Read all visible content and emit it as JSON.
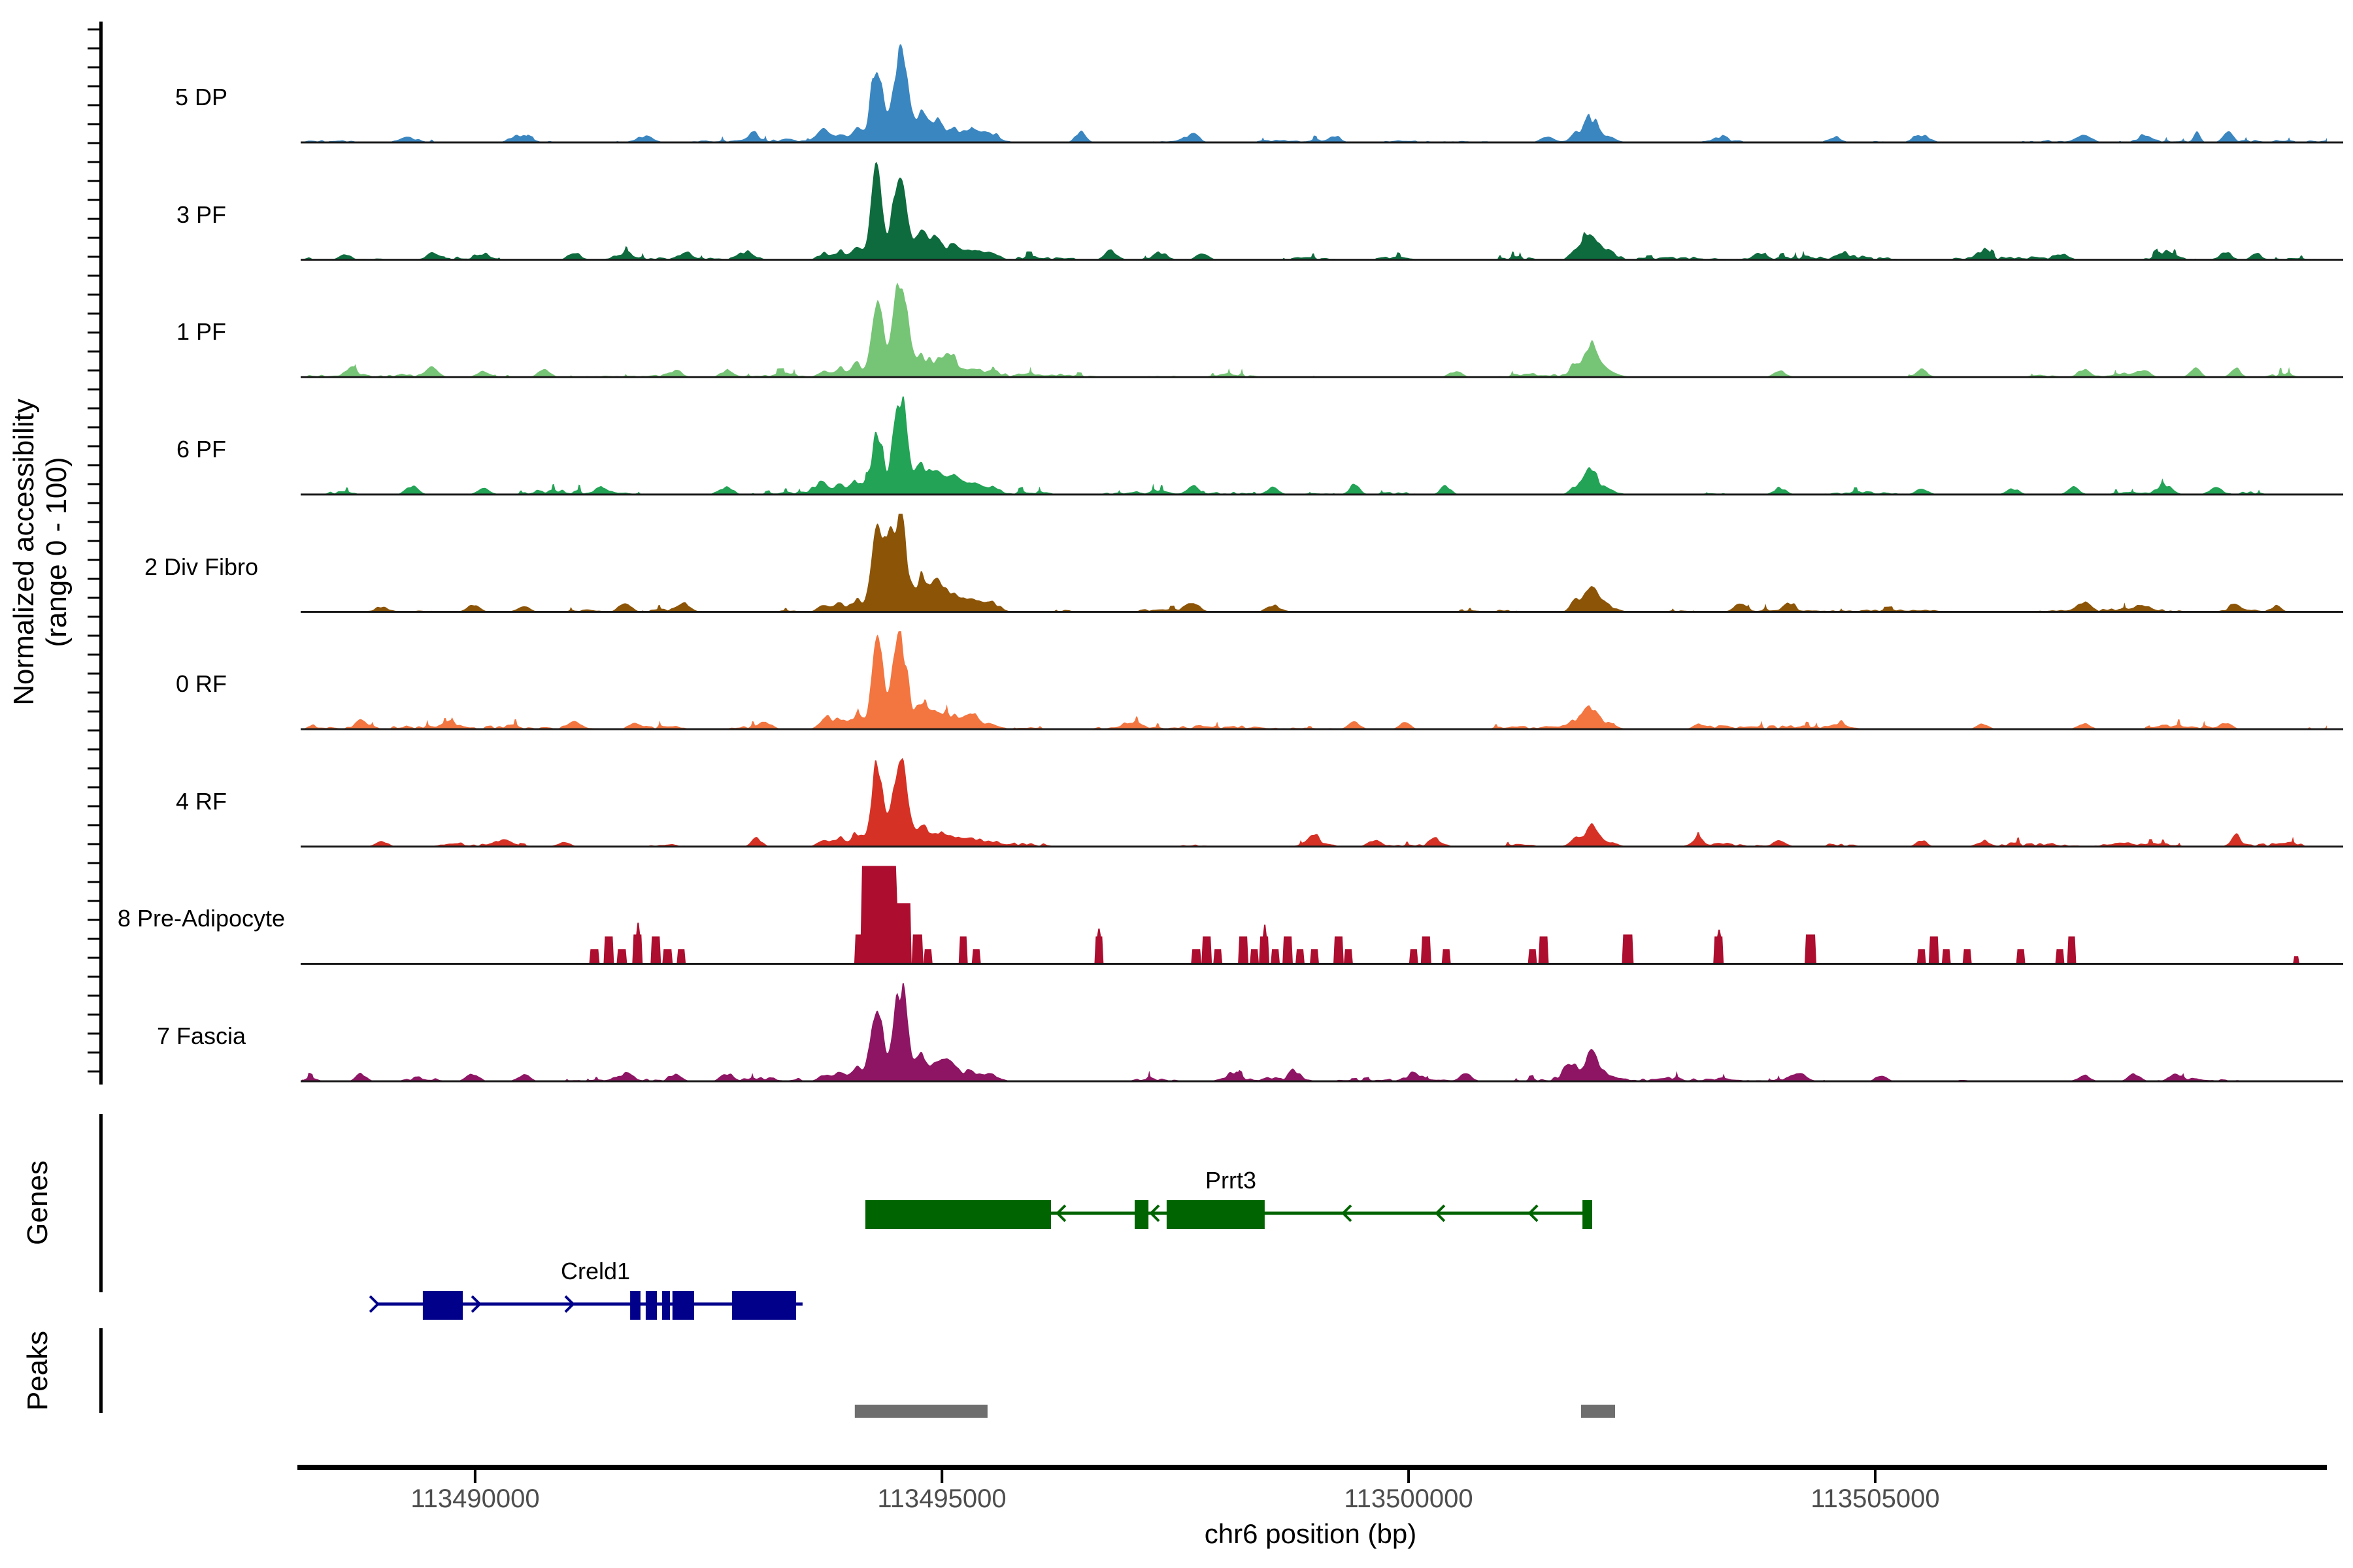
{
  "figure": {
    "y_axis_label_line1": "Normalized accessibility",
    "y_axis_label_line2": "(range 0 - 100)",
    "genes_section_label": "Genes",
    "peaks_section_label": "Peaks",
    "x_axis_title": "chr6 position (bp)"
  },
  "chart_data": {
    "type": "area",
    "chrom": "chr6",
    "x_domain_bp": [
      113488130,
      113509840
    ],
    "x_axis": {
      "title": "chr6 position (bp)",
      "ticks": [
        {
          "label": "113490000",
          "f": 0.0861
        },
        {
          "label": "113495000",
          "f": 0.3165
        },
        {
          "label": "113500000",
          "f": 0.5468
        },
        {
          "label": "113505000",
          "f": 0.7771
        }
      ]
    },
    "y_range": [
      0,
      100
    ],
    "main_peak_bp": 113494500,
    "secondary_peak_bp": 113501900,
    "main_bumps": {
      "pre": [
        [
          0.2585,
          7,
          0.003
        ],
        [
          0.2665,
          9,
          0.0025
        ],
        [
          0.2745,
          13,
          0.0025
        ]
      ],
      "A": [
        0.2843,
        88,
        0.0028
      ],
      "B": [
        0.2958,
        96,
        0.0034
      ],
      "shoulder": [
        [
          0.3065,
          26,
          0.003
        ],
        [
          0.314,
          20,
          0.003
        ],
        [
          0.3215,
          13,
          0.0035
        ],
        [
          0.331,
          11,
          0.004
        ],
        [
          0.341,
          7,
          0.004
        ]
      ]
    },
    "secondary_bump": {
      "f": 0.6365,
      "sigma": 0.003,
      "side_f": 0.629,
      "base_sigma": 0.006
    },
    "tracks": [
      {
        "name": "5 DP",
        "color": "#3a86c0",
        "style": "area",
        "mainA": 1.0,
        "mainB": 1.0,
        "shoulder": 1.0,
        "secondary": 18,
        "noise": 4.5,
        "seed": 3,
        "extras": [
          [
            0.052,
            5,
            0.004
          ],
          [
            0.108,
            7,
            0.004
          ],
          [
            0.17,
            6,
            0.004
          ],
          [
            0.223,
            10,
            0.002
          ],
          [
            0.257,
            7,
            0.003
          ],
          [
            0.385,
            11,
            0.0025
          ],
          [
            0.44,
            8,
            0.003
          ],
          [
            0.51,
            7,
            0.003
          ],
          [
            0.615,
            6,
            0.003
          ],
          [
            0.7,
            5,
            0.003
          ],
          [
            0.757,
            6,
            0.003
          ],
          [
            0.8,
            7,
            0.004
          ],
          [
            0.88,
            7,
            0.004
          ],
          [
            0.91,
            7,
            0.003
          ],
          [
            0.936,
            13,
            0.0015
          ],
          [
            0.951,
            9,
            0.0025
          ]
        ]
      },
      {
        "name": "3 PF",
        "color": "#0e6b3e",
        "style": "area",
        "mainA": 0.95,
        "mainB": 1.0,
        "shoulder": 0.9,
        "secondary": 20,
        "noise": 6,
        "seed": 7,
        "extras": [
          [
            0.022,
            5,
            0.003
          ],
          [
            0.065,
            7,
            0.003
          ],
          [
            0.09,
            6,
            0.003
          ],
          [
            0.135,
            8,
            0.003
          ],
          [
            0.16,
            6,
            0.003
          ],
          [
            0.19,
            8,
            0.003
          ],
          [
            0.22,
            6,
            0.003
          ],
          [
            0.4,
            9,
            0.003
          ],
          [
            0.425,
            7,
            0.003
          ],
          [
            0.445,
            6,
            0.003
          ],
          [
            0.72,
            7,
            0.003
          ],
          [
            0.76,
            5,
            0.003
          ],
          [
            0.83,
            8,
            0.003
          ],
          [
            0.87,
            6,
            0.003
          ],
          [
            0.92,
            6,
            0.003
          ],
          [
            0.95,
            8,
            0.003
          ],
          [
            0.965,
            7,
            0.0025
          ]
        ]
      },
      {
        "name": "1 PF",
        "color": "#76c476",
        "style": "area",
        "mainA": 0.95,
        "mainB": 1.05,
        "shoulder": 0.75,
        "secondary": 24,
        "noise": 6,
        "seed": 13,
        "extras": [
          [
            0.025,
            8,
            0.0025
          ],
          [
            0.065,
            8,
            0.003
          ],
          [
            0.09,
            6,
            0.003
          ],
          [
            0.12,
            8,
            0.003
          ],
          [
            0.185,
            7,
            0.003
          ],
          [
            0.21,
            6,
            0.003
          ],
          [
            0.32,
            12,
            0.003
          ],
          [
            0.57,
            6,
            0.003
          ],
          [
            0.73,
            6,
            0.003
          ],
          [
            0.8,
            6,
            0.003
          ],
          [
            0.88,
            8,
            0.003
          ],
          [
            0.91,
            6,
            0.003
          ],
          [
            0.935,
            10,
            0.0025
          ],
          [
            0.955,
            9,
            0.0025
          ]
        ]
      },
      {
        "name": "6 PF",
        "color": "#22a355",
        "style": "area",
        "mainA": 0.65,
        "mainB": 1.08,
        "shoulder": 1.1,
        "secondary": 15,
        "noise": 6,
        "seed": 21,
        "extras": [
          [
            0.055,
            9,
            0.003
          ],
          [
            0.09,
            6,
            0.003
          ],
          [
            0.15,
            6,
            0.003
          ],
          [
            0.21,
            8,
            0.003
          ],
          [
            0.255,
            7,
            0.003
          ],
          [
            0.44,
            10,
            0.0025
          ],
          [
            0.48,
            7,
            0.003
          ],
          [
            0.52,
            10,
            0.0025
          ],
          [
            0.565,
            9,
            0.0025
          ],
          [
            0.73,
            7,
            0.003
          ],
          [
            0.8,
            6,
            0.003
          ],
          [
            0.845,
            6,
            0.003
          ],
          [
            0.875,
            7,
            0.003
          ],
          [
            0.92,
            9,
            0.003
          ],
          [
            0.945,
            7,
            0.003
          ]
        ]
      },
      {
        "name": "2 Div Fibro",
        "color": "#8c5407",
        "style": "area",
        "mainA": 0.85,
        "mainB": 1.05,
        "shoulder": 1.3,
        "secondary": 20,
        "noise": 5,
        "seed": 31,
        "extras": [
          [
            0.04,
            5,
            0.003
          ],
          [
            0.085,
            8,
            0.003
          ],
          [
            0.11,
            6,
            0.003
          ],
          [
            0.16,
            9,
            0.003
          ],
          [
            0.19,
            7,
            0.003
          ],
          [
            0.29,
            55,
            0.0018
          ],
          [
            0.44,
            6,
            0.003
          ],
          [
            0.48,
            5,
            0.003
          ],
          [
            0.71,
            7,
            0.003
          ],
          [
            0.735,
            9,
            0.0025
          ],
          [
            0.88,
            7,
            0.003
          ],
          [
            0.91,
            5,
            0.003
          ],
          [
            0.955,
            7,
            0.003
          ],
          [
            0.975,
            6,
            0.0025
          ]
        ]
      },
      {
        "name": "0 RF",
        "color": "#f37540",
        "style": "area",
        "mainA": 0.95,
        "mainB": 1.0,
        "shoulder": 0.8,
        "secondary": 16,
        "noise": 6.5,
        "seed": 41,
        "extras": [
          [
            0.03,
            7,
            0.003
          ],
          [
            0.075,
            6,
            0.003
          ],
          [
            0.135,
            8,
            0.003
          ],
          [
            0.165,
            7,
            0.003
          ],
          [
            0.23,
            7,
            0.003
          ],
          [
            0.26,
            6,
            0.003
          ],
          [
            0.33,
            8,
            0.003
          ],
          [
            0.41,
            6,
            0.003
          ],
          [
            0.52,
            7,
            0.003
          ],
          [
            0.545,
            6,
            0.003
          ],
          [
            0.69,
            5,
            0.003
          ],
          [
            0.76,
            5,
            0.003
          ],
          [
            0.83,
            5,
            0.003
          ],
          [
            0.88,
            6,
            0.003
          ],
          [
            0.95,
            7,
            0.003
          ]
        ]
      },
      {
        "name": "4 RF",
        "color": "#d63125",
        "style": "area",
        "mainA": 0.92,
        "mainB": 1.02,
        "shoulder": 0.7,
        "secondary": 15,
        "noise": 6,
        "seed": 47,
        "extras": [
          [
            0.04,
            5,
            0.003
          ],
          [
            0.1,
            6,
            0.003
          ],
          [
            0.13,
            5,
            0.003
          ],
          [
            0.225,
            9,
            0.0025
          ],
          [
            0.5,
            10,
            0.0025
          ],
          [
            0.53,
            7,
            0.003
          ],
          [
            0.56,
            6,
            0.003
          ],
          [
            0.69,
            8,
            0.0025
          ],
          [
            0.73,
            6,
            0.003
          ],
          [
            0.8,
            7,
            0.0025
          ],
          [
            0.83,
            5,
            0.003
          ],
          [
            0.955,
            12,
            0.002
          ]
        ]
      },
      {
        "name": "8 Pre-Adipocyte",
        "color": "#ad0d2e",
        "style": "blocks",
        "secondary": 0,
        "noise": 0,
        "seed": 1,
        "bars": [
          [
            0.145,
            15,
            0.0022
          ],
          [
            0.152,
            28,
            0.0022
          ],
          [
            0.1585,
            15,
            0.0022
          ],
          [
            0.1665,
            30,
            0.0022
          ],
          [
            0.1667,
            42,
            0.0007
          ],
          [
            0.175,
            28,
            0.0022
          ],
          [
            0.181,
            15,
            0.002
          ],
          [
            0.188,
            15,
            0.0018
          ],
          [
            0.2755,
            30,
            0.002
          ],
          [
            0.2855,
            100,
            0.0085
          ],
          [
            0.2975,
            62,
            0.0035
          ],
          [
            0.3045,
            30,
            0.0025
          ],
          [
            0.3095,
            15,
            0.002
          ],
          [
            0.327,
            28,
            0.0022
          ],
          [
            0.3335,
            15,
            0.002
          ],
          [
            0.394,
            28,
            0.0022
          ],
          [
            0.3942,
            36,
            0.0007
          ],
          [
            0.442,
            15,
            0.002
          ],
          [
            0.447,
            28,
            0.0022
          ],
          [
            0.4525,
            15,
            0.002
          ],
          [
            0.465,
            28,
            0.0022
          ],
          [
            0.4705,
            15,
            0.002
          ],
          [
            0.4755,
            28,
            0.0022
          ],
          [
            0.4757,
            40,
            0.0007
          ],
          [
            0.481,
            15,
            0.002
          ],
          [
            0.487,
            28,
            0.0022
          ],
          [
            0.493,
            15,
            0.002
          ],
          [
            0.5005,
            15,
            0.002
          ],
          [
            0.512,
            28,
            0.0022
          ],
          [
            0.517,
            15,
            0.002
          ],
          [
            0.5495,
            15,
            0.002
          ],
          [
            0.5555,
            28,
            0.0022
          ],
          [
            0.5655,
            15,
            0.002
          ],
          [
            0.608,
            15,
            0.002
          ],
          [
            0.6135,
            28,
            0.0022
          ],
          [
            0.655,
            30,
            0.0025
          ],
          [
            0.7,
            28,
            0.0022
          ],
          [
            0.7002,
            35,
            0.0007
          ],
          [
            0.745,
            30,
            0.0025
          ],
          [
            0.8,
            15,
            0.002
          ],
          [
            0.806,
            28,
            0.0022
          ],
          [
            0.812,
            15,
            0.002
          ],
          [
            0.8225,
            15,
            0.002
          ],
          [
            0.849,
            15,
            0.002
          ],
          [
            0.868,
            15,
            0.002
          ],
          [
            0.874,
            28,
            0.0022
          ],
          [
            0.985,
            8,
            0.0012
          ]
        ]
      },
      {
        "name": "7 Fascia",
        "color": "#8e1563",
        "style": "area",
        "mainA": 0.98,
        "mainB": 1.02,
        "shoulder": 0.9,
        "secondary": 20,
        "noise": 6,
        "seed": 59,
        "extras": [
          [
            0.03,
            8,
            0.0025
          ],
          [
            0.085,
            8,
            0.003
          ],
          [
            0.11,
            6,
            0.003
          ],
          [
            0.16,
            7,
            0.003
          ],
          [
            0.185,
            6,
            0.003
          ],
          [
            0.21,
            7,
            0.003
          ],
          [
            0.32,
            10,
            0.003
          ],
          [
            0.46,
            8,
            0.003
          ],
          [
            0.49,
            9,
            0.003
          ],
          [
            0.55,
            8,
            0.003
          ],
          [
            0.575,
            7,
            0.003
          ],
          [
            0.625,
            13,
            0.0025
          ],
          [
            0.74,
            6,
            0.003
          ],
          [
            0.78,
            5,
            0.003
          ],
          [
            0.88,
            6,
            0.003
          ],
          [
            0.905,
            7,
            0.003
          ],
          [
            0.925,
            8,
            0.0025
          ]
        ]
      }
    ],
    "genes": [
      {
        "name": "Prrt3",
        "color": "#006400",
        "strand": "-",
        "row": 0,
        "label_f": 0.459,
        "line": [
          0.2787,
          0.6374
        ],
        "exons": [
          [
            0.2787,
            0.3703
          ],
          [
            0.4116,
            0.4184
          ],
          [
            0.4274,
            0.4758
          ],
          [
            0.6326,
            0.6374
          ]
        ],
        "arrows": [
          0.3735,
          0.4197,
          0.5145,
          0.5606,
          0.6065
        ]
      },
      {
        "name": "Creld1",
        "color": "#00008b",
        "strand": "+",
        "row": 1,
        "label_f": 0.1455,
        "line": [
          0.0381,
          0.2477
        ],
        "exons": [
          [
            0.0603,
            0.08
          ],
          [
            0.1626,
            0.1677
          ],
          [
            0.1703,
            0.1758
          ],
          [
            0.1784,
            0.1823
          ],
          [
            0.1835,
            0.1942
          ],
          [
            0.2129,
            0.2445
          ]
        ],
        "arrows": [
          0.0381,
          0.0884,
          0.1345
        ]
      }
    ],
    "peaks": [
      {
        "f": [
          0.2735,
          0.339
        ]
      },
      {
        "f": [
          0.6319,
          0.6487
        ]
      }
    ],
    "peak_color": "#6e6e6e"
  }
}
